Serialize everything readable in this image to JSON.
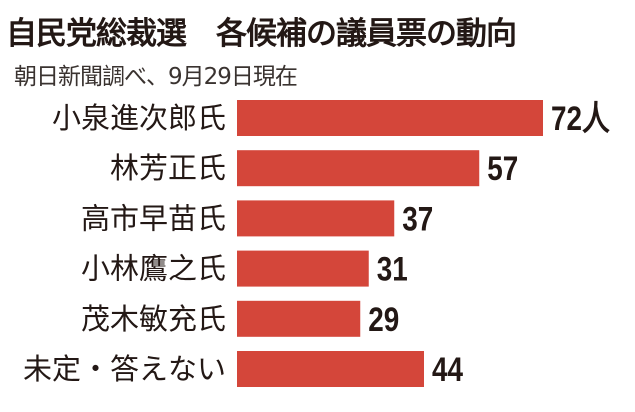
{
  "chart_data": {
    "type": "bar",
    "orientation": "horizontal",
    "title": "自民党総裁選　各候補の議員票の動向",
    "subtitle": "朝日新聞調べ、9月29日現在",
    "categories": [
      "小泉進次郎氏",
      "林芳正氏",
      "高市早苗氏",
      "小林鷹之氏",
      "茂木敏充氏",
      "未定・答えない"
    ],
    "values": [
      72,
      57,
      37,
      31,
      29,
      44
    ],
    "value_labels": [
      "72人",
      "57",
      "37",
      "31",
      "29",
      "44"
    ],
    "unit": "人",
    "xlim": [
      0,
      72
    ],
    "grid": false,
    "colors": {
      "bar": "#d4463a",
      "text": "#231815"
    }
  }
}
